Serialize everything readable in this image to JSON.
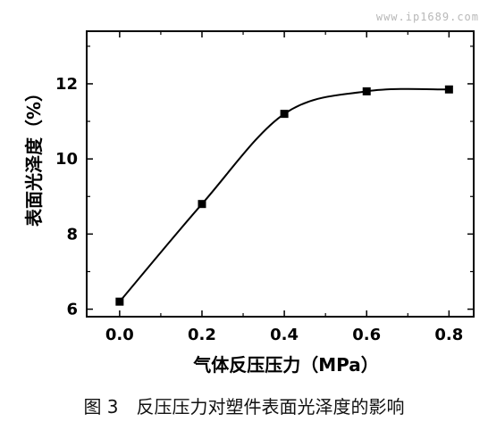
{
  "watermark": "www.ip1689.com",
  "caption": "图 3　反压压力对塑件表面光泽度的影响",
  "chart_data": {
    "type": "line",
    "xlabel": "气体反压压力（MPa）",
    "ylabel": "表面光泽度（%）",
    "xlim": [
      -0.08,
      0.86
    ],
    "ylim": [
      5.8,
      13.4
    ],
    "xticks": [
      0.0,
      0.2,
      0.4,
      0.6,
      0.8
    ],
    "xtick_labels": [
      "0.0",
      "0.2",
      "0.4",
      "0.6",
      "0.8"
    ],
    "yticks": [
      6,
      8,
      10,
      12
    ],
    "ytick_labels": [
      "6",
      "8",
      "10",
      "12"
    ],
    "grid": false,
    "series": [
      {
        "x": [
          0.0,
          0.2,
          0.4,
          0.6,
          0.8
        ],
        "y": [
          6.2,
          8.8,
          11.2,
          11.8,
          11.85
        ]
      }
    ],
    "line_color": "#000000",
    "marker": "square"
  }
}
